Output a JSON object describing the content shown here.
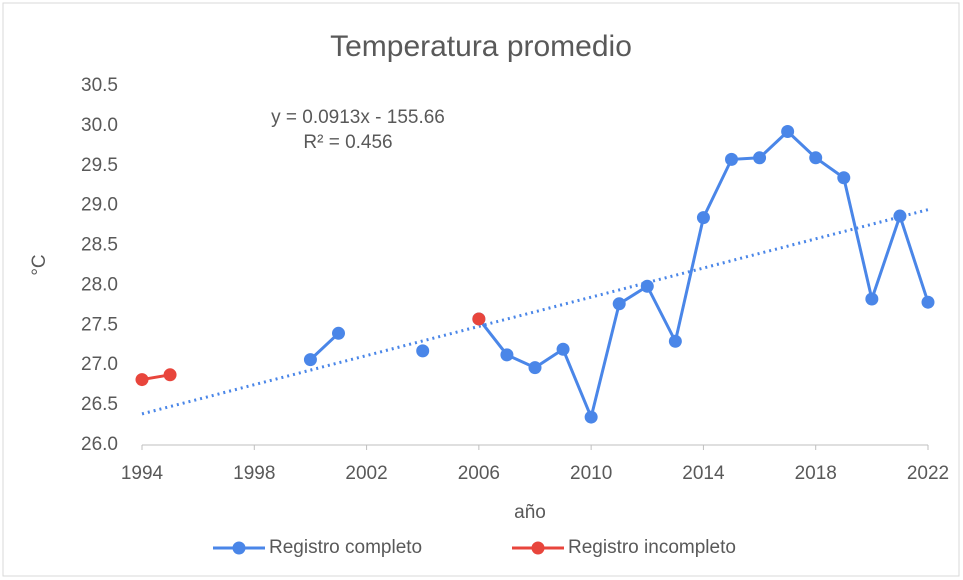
{
  "chart_data": {
    "type": "line",
    "title": "Temperatura promedio",
    "x_label": "año",
    "y_label": "°C",
    "annotations": [
      "y = 0.0913x - 155.66",
      "R² = 0.456"
    ],
    "x": [
      1994,
      1995,
      1996,
      1997,
      1998,
      1999,
      2000,
      2001,
      2002,
      2003,
      2004,
      2005,
      2006,
      2007,
      2008,
      2009,
      2010,
      2011,
      2012,
      2013,
      2014,
      2015,
      2016,
      2017,
      2018,
      2019,
      2020,
      2021,
      2022
    ],
    "series": [
      {
        "name": "Registro completo",
        "color": "#4a86e8",
        "values": [
          null,
          null,
          null,
          null,
          null,
          null,
          27.07,
          27.4,
          null,
          null,
          27.18,
          null,
          27.58,
          27.13,
          26.97,
          27.2,
          26.35,
          27.77,
          27.99,
          27.3,
          28.85,
          29.58,
          29.6,
          29.93,
          29.6,
          29.35,
          27.83,
          28.87,
          27.79
        ]
      },
      {
        "name": "Registro incompleto",
        "color": "#e8453c",
        "values": [
          26.82,
          26.88,
          null,
          null,
          null,
          null,
          null,
          null,
          null,
          null,
          null,
          null,
          27.58,
          null,
          null,
          null,
          null,
          null,
          null,
          null,
          null,
          null,
          null,
          null,
          null,
          null,
          null,
          null,
          null
        ]
      }
    ],
    "trendline": {
      "color": "#4a86e8",
      "x": [
        1994,
        2022
      ],
      "values": [
        26.39,
        28.95
      ]
    },
    "xlim": [
      1994,
      2022
    ],
    "xticks": [
      1994,
      1998,
      2002,
      2006,
      2010,
      2014,
      2018,
      2022
    ],
    "ylim": [
      26,
      30.5
    ],
    "yticks": [
      {
        "value": 26,
        "label": "26.0"
      },
      26.5,
      {
        "value": 27,
        "label": "27.0"
      },
      27.5,
      {
        "value": 28,
        "label": "28.0"
      },
      28.5,
      {
        "value": 29,
        "label": "29.0"
      },
      29.5,
      {
        "value": 30,
        "label": "30.0"
      },
      30.5
    ],
    "grid": false,
    "legend": "bottom"
  }
}
